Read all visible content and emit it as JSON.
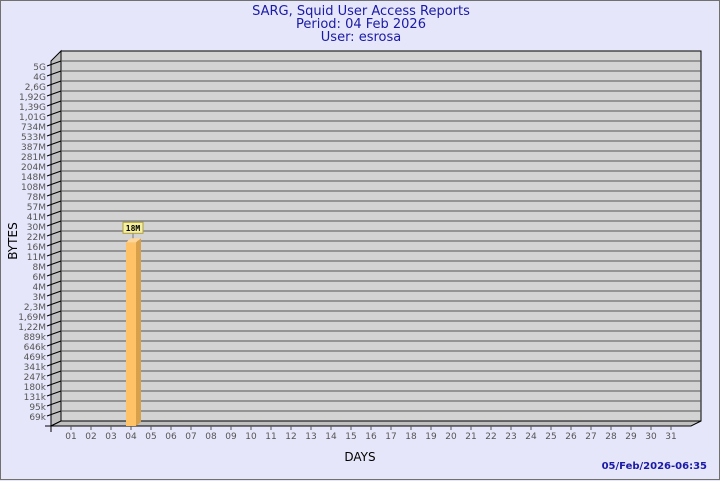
{
  "chart_data": {
    "type": "bar",
    "title": "SARG, Squid User Access Reports",
    "subtitle": [
      "Period: 04 Feb 2026",
      "User: esrosa"
    ],
    "xlabel": "DAYS",
    "ylabel": "BYTES",
    "y_scale": "log",
    "y_tick_labels": [
      "5G",
      "4G",
      "2,6G",
      "1,92G",
      "1,39G",
      "1,01G",
      "734M",
      "533M",
      "387M",
      "281M",
      "204M",
      "148M",
      "108M",
      "78M",
      "57M",
      "41M",
      "30M",
      "22M",
      "16M",
      "11M",
      "8M",
      "6M",
      "4M",
      "3M",
      "2,3M",
      "1,69M",
      "1,22M",
      "889k",
      "646k",
      "469k",
      "341k",
      "247k",
      "180k",
      "131k",
      "95k",
      "69k"
    ],
    "categories": [
      "01",
      "02",
      "03",
      "04",
      "05",
      "06",
      "07",
      "08",
      "09",
      "10",
      "11",
      "12",
      "13",
      "14",
      "15",
      "16",
      "17",
      "18",
      "19",
      "20",
      "21",
      "22",
      "23",
      "24",
      "25",
      "26",
      "27",
      "28",
      "29",
      "30",
      "31"
    ],
    "bars": [
      {
        "category": "04",
        "value": "18M",
        "label": "18M"
      }
    ],
    "grid": true,
    "colors": {
      "bar_front": "#ffc266",
      "bar_side": "#d9a04c",
      "plot_bg": "#d3d3d3",
      "title": "#1a1aa6"
    }
  },
  "footer": {
    "timestamp": "05/Feb/2026-06:35"
  }
}
